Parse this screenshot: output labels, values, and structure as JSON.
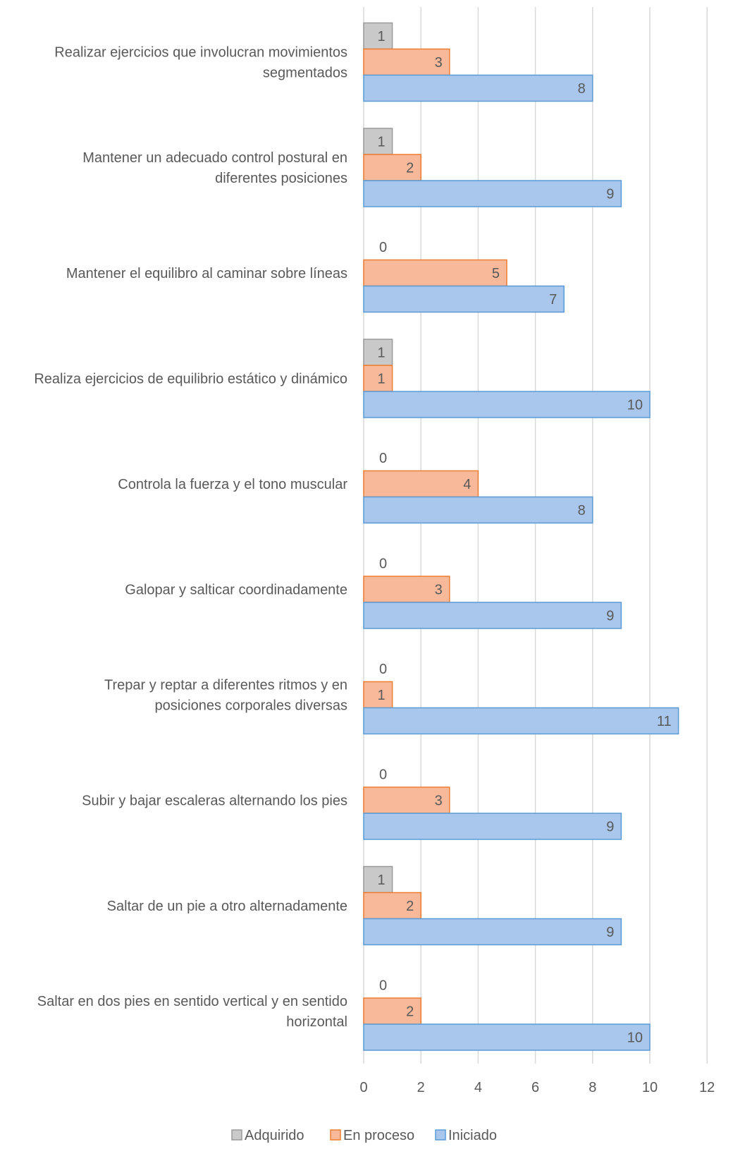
{
  "chart_data": {
    "type": "bar",
    "orientation": "horizontal",
    "categories": [
      "Realizar ejercicios que involucran movimientos segmentados",
      "Mantener un adecuado control postural en diferentes posiciones",
      "Mantener el equilibro al caminar sobre líneas",
      "Realiza ejercicios de equilibrio estático y dinámico",
      "Controla la fuerza y el tono muscular",
      "Galopar y salticar coordinadamente",
      "Trepar y reptar a diferentes ritmos y en posiciones corporales diversas",
      "Subir y bajar escaleras alternando los pies",
      "Saltar de un pie a otro alternadamente",
      "Saltar en dos pies en sentido vertical y en sentido horizontal"
    ],
    "category_lines": [
      [
        "Realizar ejercicios que involucran movimientos",
        "segmentados"
      ],
      [
        "Mantener un adecuado control postural en",
        "diferentes posiciones"
      ],
      [
        "Mantener el equilibro al caminar sobre líneas"
      ],
      [
        "Realiza ejercicios de equilibrio estático y dinámico"
      ],
      [
        "Controla la fuerza y el tono muscular"
      ],
      [
        "Galopar y salticar coordinadamente"
      ],
      [
        "Trepar y reptar a diferentes ritmos y en",
        "posiciones corporales diversas"
      ],
      [
        "Subir y bajar escaleras alternando los pies"
      ],
      [
        "Saltar de un pie a otro alternadamente"
      ],
      [
        "Saltar en dos pies en sentido vertical y en sentido",
        "horizontal"
      ]
    ],
    "series": [
      {
        "name": "Adquirido",
        "color": "#c9c9c9",
        "stroke": "#9a9a9a",
        "values": [
          1,
          1,
          0,
          1,
          0,
          0,
          0,
          0,
          1,
          0
        ]
      },
      {
        "name": "En proceso",
        "color": "#f8b99b",
        "stroke": "#ed7d31",
        "values": [
          3,
          2,
          5,
          1,
          4,
          3,
          1,
          3,
          2,
          2
        ]
      },
      {
        "name": "Iniciado",
        "color": "#a9c6ec",
        "stroke": "#5b9bd5",
        "values": [
          8,
          9,
          7,
          10,
          8,
          9,
          11,
          9,
          9,
          10
        ]
      }
    ],
    "xlim": [
      0,
      12
    ],
    "xticks": [
      0,
      2,
      4,
      6,
      8,
      10,
      12
    ],
    "grid": true,
    "legend_position": "bottom",
    "title": "",
    "xlabel": "",
    "ylabel": ""
  }
}
